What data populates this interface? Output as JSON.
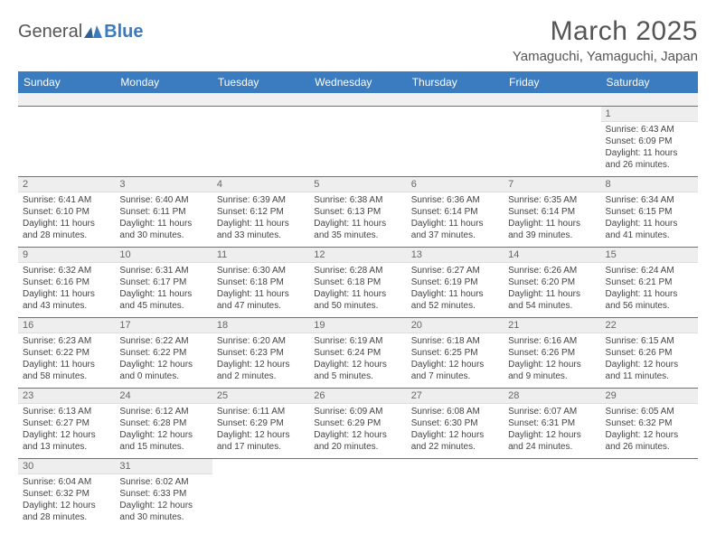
{
  "logo": {
    "text1": "General",
    "text2": "Blue"
  },
  "title": "March 2025",
  "location": "Yamaguchi, Yamaguchi, Japan",
  "colors": {
    "header_bg": "#3b7bbf",
    "header_text": "#ffffff",
    "grid_line": "#3b7bbf",
    "daynum_bg": "#eeeeee",
    "text": "#444444"
  },
  "weekdays": [
    "Sunday",
    "Monday",
    "Tuesday",
    "Wednesday",
    "Thursday",
    "Friday",
    "Saturday"
  ],
  "weeks": [
    [
      null,
      null,
      null,
      null,
      null,
      null,
      {
        "n": "1",
        "sr": "6:43 AM",
        "ss": "6:09 PM",
        "dl": "11 hours and 26 minutes."
      }
    ],
    [
      {
        "n": "2",
        "sr": "6:41 AM",
        "ss": "6:10 PM",
        "dl": "11 hours and 28 minutes."
      },
      {
        "n": "3",
        "sr": "6:40 AM",
        "ss": "6:11 PM",
        "dl": "11 hours and 30 minutes."
      },
      {
        "n": "4",
        "sr": "6:39 AM",
        "ss": "6:12 PM",
        "dl": "11 hours and 33 minutes."
      },
      {
        "n": "5",
        "sr": "6:38 AM",
        "ss": "6:13 PM",
        "dl": "11 hours and 35 minutes."
      },
      {
        "n": "6",
        "sr": "6:36 AM",
        "ss": "6:14 PM",
        "dl": "11 hours and 37 minutes."
      },
      {
        "n": "7",
        "sr": "6:35 AM",
        "ss": "6:14 PM",
        "dl": "11 hours and 39 minutes."
      },
      {
        "n": "8",
        "sr": "6:34 AM",
        "ss": "6:15 PM",
        "dl": "11 hours and 41 minutes."
      }
    ],
    [
      {
        "n": "9",
        "sr": "6:32 AM",
        "ss": "6:16 PM",
        "dl": "11 hours and 43 minutes."
      },
      {
        "n": "10",
        "sr": "6:31 AM",
        "ss": "6:17 PM",
        "dl": "11 hours and 45 minutes."
      },
      {
        "n": "11",
        "sr": "6:30 AM",
        "ss": "6:18 PM",
        "dl": "11 hours and 47 minutes."
      },
      {
        "n": "12",
        "sr": "6:28 AM",
        "ss": "6:18 PM",
        "dl": "11 hours and 50 minutes."
      },
      {
        "n": "13",
        "sr": "6:27 AM",
        "ss": "6:19 PM",
        "dl": "11 hours and 52 minutes."
      },
      {
        "n": "14",
        "sr": "6:26 AM",
        "ss": "6:20 PM",
        "dl": "11 hours and 54 minutes."
      },
      {
        "n": "15",
        "sr": "6:24 AM",
        "ss": "6:21 PM",
        "dl": "11 hours and 56 minutes."
      }
    ],
    [
      {
        "n": "16",
        "sr": "6:23 AM",
        "ss": "6:22 PM",
        "dl": "11 hours and 58 minutes."
      },
      {
        "n": "17",
        "sr": "6:22 AM",
        "ss": "6:22 PM",
        "dl": "12 hours and 0 minutes."
      },
      {
        "n": "18",
        "sr": "6:20 AM",
        "ss": "6:23 PM",
        "dl": "12 hours and 2 minutes."
      },
      {
        "n": "19",
        "sr": "6:19 AM",
        "ss": "6:24 PM",
        "dl": "12 hours and 5 minutes."
      },
      {
        "n": "20",
        "sr": "6:18 AM",
        "ss": "6:25 PM",
        "dl": "12 hours and 7 minutes."
      },
      {
        "n": "21",
        "sr": "6:16 AM",
        "ss": "6:26 PM",
        "dl": "12 hours and 9 minutes."
      },
      {
        "n": "22",
        "sr": "6:15 AM",
        "ss": "6:26 PM",
        "dl": "12 hours and 11 minutes."
      }
    ],
    [
      {
        "n": "23",
        "sr": "6:13 AM",
        "ss": "6:27 PM",
        "dl": "12 hours and 13 minutes."
      },
      {
        "n": "24",
        "sr": "6:12 AM",
        "ss": "6:28 PM",
        "dl": "12 hours and 15 minutes."
      },
      {
        "n": "25",
        "sr": "6:11 AM",
        "ss": "6:29 PM",
        "dl": "12 hours and 17 minutes."
      },
      {
        "n": "26",
        "sr": "6:09 AM",
        "ss": "6:29 PM",
        "dl": "12 hours and 20 minutes."
      },
      {
        "n": "27",
        "sr": "6:08 AM",
        "ss": "6:30 PM",
        "dl": "12 hours and 22 minutes."
      },
      {
        "n": "28",
        "sr": "6:07 AM",
        "ss": "6:31 PM",
        "dl": "12 hours and 24 minutes."
      },
      {
        "n": "29",
        "sr": "6:05 AM",
        "ss": "6:32 PM",
        "dl": "12 hours and 26 minutes."
      }
    ],
    [
      {
        "n": "30",
        "sr": "6:04 AM",
        "ss": "6:32 PM",
        "dl": "12 hours and 28 minutes."
      },
      {
        "n": "31",
        "sr": "6:02 AM",
        "ss": "6:33 PM",
        "dl": "12 hours and 30 minutes."
      },
      null,
      null,
      null,
      null,
      null
    ]
  ],
  "labels": {
    "sunrise": "Sunrise:",
    "sunset": "Sunset:",
    "daylight": "Daylight:"
  }
}
